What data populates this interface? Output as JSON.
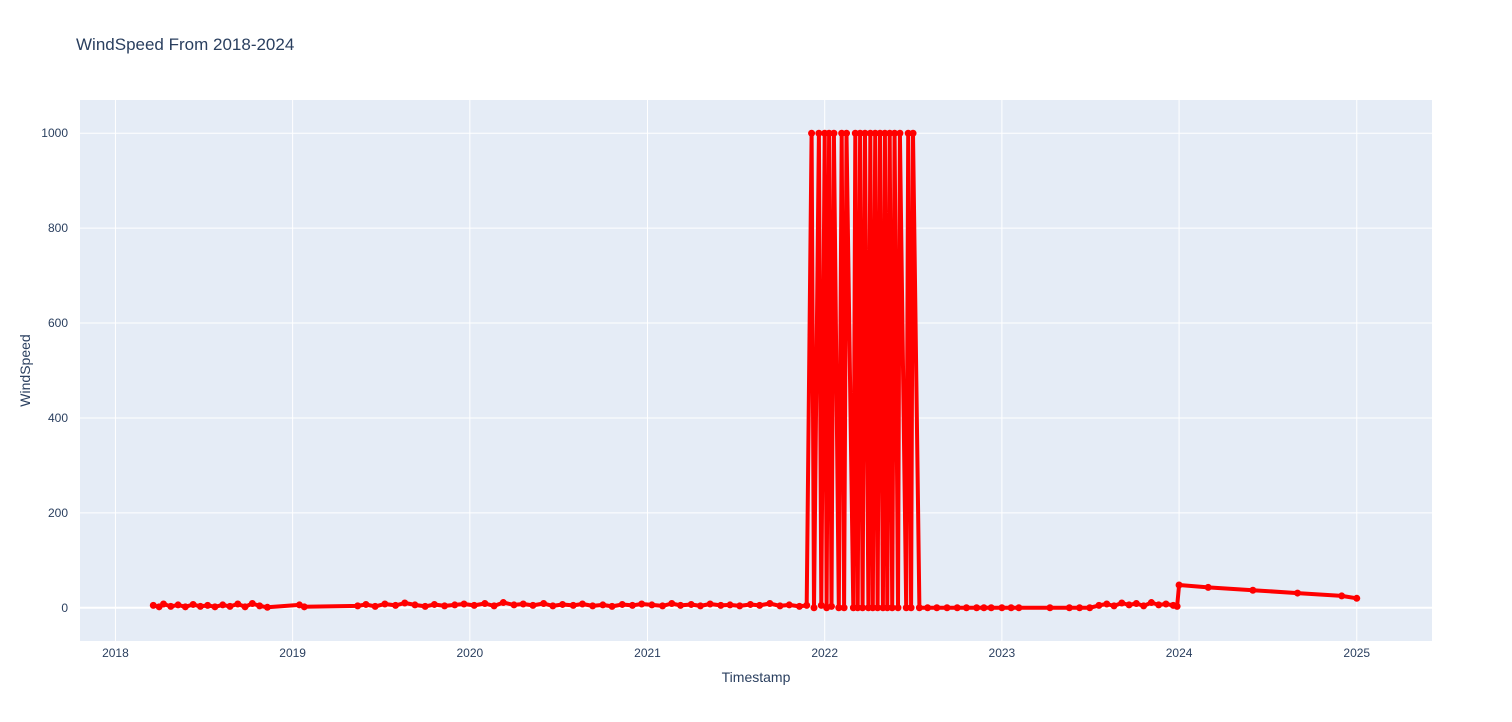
{
  "chart_data": {
    "type": "line",
    "title": "WindSpeed From 2018-2024",
    "xlabel": "Timestamp",
    "ylabel": "WindSpeed",
    "x_axis": "date",
    "xlim": [
      "2017-10-20",
      "2025-06-05"
    ],
    "ylim": [
      -70,
      1070
    ],
    "xticks": [
      "2018",
      "2019",
      "2020",
      "2021",
      "2022",
      "2023",
      "2024",
      "2025"
    ],
    "yticks": [
      0,
      200,
      400,
      600,
      800,
      1000
    ],
    "grid": true,
    "legend": "none",
    "series": [
      {
        "mode": "lines+markers",
        "color": "#ff0000",
        "x": [
          "2018-03-20",
          "2018-04-01",
          "2018-04-10",
          "2018-04-25",
          "2018-05-10",
          "2018-05-25",
          "2018-06-10",
          "2018-06-25",
          "2018-07-10",
          "2018-07-25",
          "2018-08-10",
          "2018-08-25",
          "2018-09-10",
          "2018-09-25",
          "2018-10-10",
          "2018-10-25",
          "2018-11-10",
          "2019-01-15",
          "2019-01-25",
          "2019-05-15",
          "2019-06-01",
          "2019-06-20",
          "2019-07-10",
          "2019-08-01",
          "2019-08-20",
          "2019-09-10",
          "2019-10-01",
          "2019-10-20",
          "2019-11-10",
          "2019-12-01",
          "2019-12-20",
          "2020-01-10",
          "2020-02-01",
          "2020-02-20",
          "2020-03-10",
          "2020-04-01",
          "2020-04-20",
          "2020-05-10",
          "2020-06-01",
          "2020-06-20",
          "2020-07-10",
          "2020-08-01",
          "2020-08-20",
          "2020-09-10",
          "2020-10-01",
          "2020-10-20",
          "2020-11-10",
          "2020-12-01",
          "2020-12-20",
          "2021-01-10",
          "2021-02-01",
          "2021-02-20",
          "2021-03-10",
          "2021-04-01",
          "2021-04-20",
          "2021-05-10",
          "2021-06-01",
          "2021-06-20",
          "2021-07-10",
          "2021-08-01",
          "2021-08-20",
          "2021-09-10",
          "2021-10-01",
          "2021-10-20",
          "2021-11-10",
          "2021-11-25",
          "2021-12-05",
          "2021-12-10",
          "2021-12-20",
          "2021-12-25",
          "2022-01-01",
          "2022-01-05",
          "2022-01-10",
          "2022-01-15",
          "2022-01-20",
          "2022-01-30",
          "2022-02-05",
          "2022-02-10",
          "2022-02-15",
          "2022-03-01",
          "2022-03-05",
          "2022-03-10",
          "2022-03-15",
          "2022-03-20",
          "2022-03-25",
          "2022-04-01",
          "2022-04-05",
          "2022-04-10",
          "2022-04-15",
          "2022-04-20",
          "2022-04-25",
          "2022-05-01",
          "2022-05-05",
          "2022-05-10",
          "2022-05-15",
          "2022-05-20",
          "2022-05-25",
          "2022-06-01",
          "2022-06-05",
          "2022-06-18",
          "2022-06-22",
          "2022-06-28",
          "2022-07-02",
          "2022-07-15",
          "2022-08-01",
          "2022-08-20",
          "2022-09-10",
          "2022-10-01",
          "2022-10-20",
          "2022-11-10",
          "2022-11-25",
          "2022-12-10",
          "2023-01-01",
          "2023-01-20",
          "2023-02-05",
          "2023-04-10",
          "2023-05-20",
          "2023-06-10",
          "2023-07-01",
          "2023-07-20",
          "2023-08-05",
          "2023-08-20",
          "2023-09-05",
          "2023-09-20",
          "2023-10-05",
          "2023-10-20",
          "2023-11-05",
          "2023-11-20",
          "2023-12-05",
          "2023-12-20",
          "2023-12-28",
          "2024-01-01",
          "2024-03-01",
          "2024-06-01",
          "2024-09-01",
          "2024-12-01",
          "2025-01-01"
        ],
        "y": [
          5,
          2,
          8,
          3,
          6,
          2,
          7,
          3,
          5,
          2,
          6,
          3,
          8,
          2,
          9,
          4,
          1,
          6,
          2,
          4,
          7,
          3,
          8,
          5,
          10,
          6,
          3,
          7,
          4,
          6,
          8,
          5,
          9,
          4,
          11,
          6,
          8,
          5,
          9,
          4,
          7,
          5,
          8,
          4,
          6,
          3,
          7,
          5,
          8,
          6,
          4,
          9,
          5,
          7,
          4,
          8,
          5,
          6,
          4,
          7,
          5,
          9,
          4,
          6,
          3,
          5,
          1000,
          0,
          1000,
          5,
          1000,
          0,
          1000,
          3,
          1000,
          0,
          1000,
          0,
          1000,
          0,
          1000,
          0,
          1000,
          0,
          1000,
          0,
          1000,
          0,
          1000,
          0,
          1000,
          0,
          1000,
          0,
          1000,
          0,
          1000,
          0,
          1000,
          0,
          1000,
          0,
          1000,
          0,
          0,
          0,
          0,
          0,
          0,
          0,
          0,
          0,
          0,
          0,
          0,
          0,
          0,
          0,
          0,
          5,
          8,
          4,
          10,
          6,
          9,
          4,
          11,
          6,
          8,
          5,
          3,
          48,
          43,
          37,
          31,
          25,
          20
        ]
      }
    ]
  }
}
